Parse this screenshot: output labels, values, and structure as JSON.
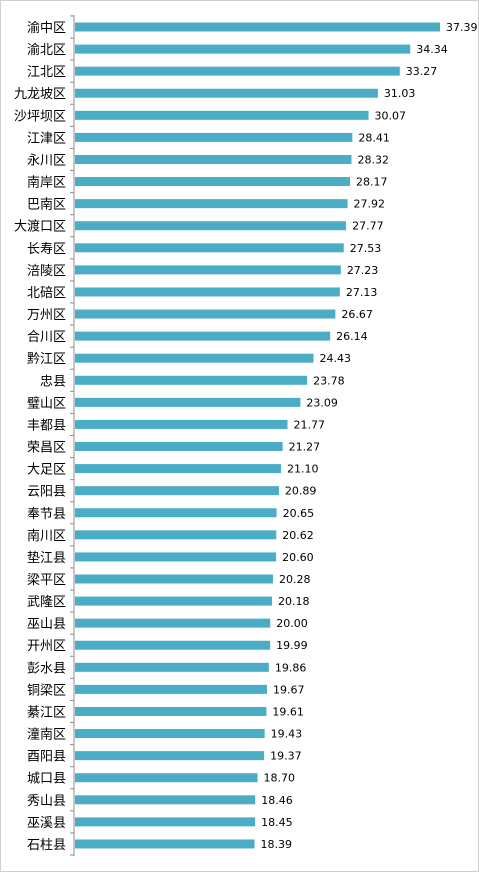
{
  "chart_data": {
    "type": "bar",
    "orientation": "horizontal",
    "title": "",
    "xlabel": "",
    "ylabel": "",
    "xlim": [
      0,
      37.39
    ],
    "grid": false,
    "legend": "none",
    "bar_color": "#4bacc6",
    "categories": [
      "渝中区",
      "渝北区",
      "江北区",
      "九龙坡区",
      "沙坪坝区",
      "江津区",
      "永川区",
      "南岸区",
      "巴南区",
      "大渡口区",
      "长寿区",
      "涪陵区",
      "北碚区",
      "万州区",
      "合川区",
      "黔江区",
      "忠县",
      "璧山区",
      "丰都县",
      "荣昌区",
      "大足区",
      "云阳县",
      "奉节县",
      "南川区",
      "垫江县",
      "梁平区",
      "武隆区",
      "巫山县",
      "开州区",
      "彭水县",
      "铜梁区",
      "綦江区",
      "潼南区",
      "酉阳县",
      "城口县",
      "秀山县",
      "巫溪县",
      "石柱县"
    ],
    "values": [
      37.39,
      34.34,
      33.27,
      31.03,
      30.07,
      28.41,
      28.32,
      28.17,
      27.92,
      27.77,
      27.53,
      27.23,
      27.13,
      26.67,
      26.14,
      24.43,
      23.78,
      23.09,
      21.77,
      21.27,
      21.1,
      20.89,
      20.65,
      20.62,
      20.6,
      20.28,
      20.18,
      20.0,
      19.99,
      19.86,
      19.67,
      19.61,
      19.43,
      19.37,
      18.7,
      18.46,
      18.45,
      18.39
    ],
    "value_labels": [
      "37.39",
      "34.34",
      "33.27",
      "31.03",
      "30.07",
      "28.41",
      "28.32",
      "28.17",
      "27.92",
      "27.77",
      "27.53",
      "27.23",
      "27.13",
      "26.67",
      "26.14",
      "24.43",
      "23.78",
      "23.09",
      "21.77",
      "21.27",
      "21.10",
      "20.89",
      "20.65",
      "20.62",
      "20.60",
      "20.28",
      "20.18",
      "20.00",
      "19.99",
      "19.86",
      "19.67",
      "19.61",
      "19.43",
      "19.37",
      "18.70",
      "18.46",
      "18.45",
      "18.39"
    ]
  }
}
